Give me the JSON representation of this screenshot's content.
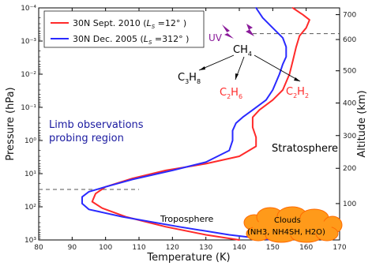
{
  "chart_data": {
    "type": "line",
    "xlabel": "Temperature (K)",
    "ylabel": "Pressure (hPa)",
    "y2label": "Altitude (km)",
    "xlim": [
      80,
      170
    ],
    "ylim": [
      1000,
      0.0001
    ],
    "yscale": "log",
    "x_ticks": [
      "80",
      "90",
      "100",
      "110",
      "120",
      "130",
      "140",
      "150",
      "160",
      "170"
    ],
    "y_ticks": [
      "10⁻⁴",
      "10⁻³",
      "10⁻²",
      "10⁻¹",
      "10⁰",
      "10¹",
      "10²",
      "10³"
    ],
    "y2_ticks": [
      {
        "label": "100",
        "pressure": 80
      },
      {
        "label": "200",
        "pressure": 6.9
      },
      {
        "label": "300",
        "pressure": 0.71
      },
      {
        "label": "400",
        "pressure": 0.074
      },
      {
        "label": "500",
        "pressure": 0.0079
      },
      {
        "label": "600",
        "pressure": 0.0009
      },
      {
        "label": "700",
        "pressure": 0.00016
      }
    ],
    "grid": false,
    "legend_position": "top-left",
    "series": [
      {
        "name": "30N Sept. 2010 (L_S = 12°)",
        "color": "#ff2a2a",
        "points": [
          [
            140,
            1000
          ],
          [
            130,
            700
          ],
          [
            118,
            400
          ],
          [
            106,
            200
          ],
          [
            99,
            110
          ],
          [
            96,
            70
          ],
          [
            97,
            40
          ],
          [
            100,
            25
          ],
          [
            108,
            14
          ],
          [
            118,
            8
          ],
          [
            130,
            5
          ],
          [
            140,
            3
          ],
          [
            145,
            1.5
          ],
          [
            145,
            0.8
          ],
          [
            144,
            0.4
          ],
          [
            144,
            0.2
          ],
          [
            146,
            0.12
          ],
          [
            150,
            0.06
          ],
          [
            153,
            0.03
          ],
          [
            155,
            0.01
          ],
          [
            156,
            0.004
          ],
          [
            157,
            0.0015
          ],
          [
            158,
            0.0007
          ],
          [
            160,
            0.0004
          ],
          [
            161,
            0.00023
          ],
          [
            159,
            0.00016
          ],
          [
            156,
            0.0001
          ]
        ]
      },
      {
        "name": "30N Dec. 2005 (L_S = 312°)",
        "color": "#2a2aff",
        "points": [
          [
            150,
            1000
          ],
          [
            137,
            700
          ],
          [
            122,
            400
          ],
          [
            105,
            200
          ],
          [
            95,
            120
          ],
          [
            93,
            80
          ],
          [
            93,
            50
          ],
          [
            95,
            35
          ],
          [
            100,
            25
          ],
          [
            108,
            15
          ],
          [
            120,
            8
          ],
          [
            130,
            4.5
          ],
          [
            137,
            2
          ],
          [
            138,
            1
          ],
          [
            138,
            0.5
          ],
          [
            139,
            0.3
          ],
          [
            141,
            0.2
          ],
          [
            144,
            0.12
          ],
          [
            148,
            0.06
          ],
          [
            150,
            0.03
          ],
          [
            152,
            0.01
          ],
          [
            153,
            0.005
          ],
          [
            154,
            0.003
          ],
          [
            154,
            0.0015
          ],
          [
            153,
            0.0008
          ],
          [
            150,
            0.0004
          ],
          [
            147,
            0.0002
          ],
          [
            145,
            0.0001
          ]
        ]
      }
    ],
    "reference_lines": [
      {
        "pressure": 0.0006,
        "x_from": 144,
        "x_to": 170
      },
      {
        "pressure": 30,
        "x_from": 80,
        "x_to": 110
      }
    ],
    "annotations": {
      "uv": "UV",
      "ch4": "CH",
      "ch4_sub": "4",
      "c3h8": "C",
      "c3h8_sub1": "3",
      "c3h8_mid": "H",
      "c3h8_sub2": "8",
      "c2h6": "C",
      "c2h6_sub1": "2",
      "c2h6_mid": "H",
      "c2h6_sub2": "6",
      "c2h2": "C",
      "c2h2_sub1": "2",
      "c2h2_mid": "H",
      "c2h2_sub2": "2",
      "limb_line1": "Limb observations",
      "limb_line2": "probing region",
      "stratosphere": "Stratosphere",
      "troposphere": "Troposphere",
      "clouds": "Clouds",
      "clouds_composition": "(NH3, NH4SH, H2O)"
    },
    "legend": [
      {
        "label_prefix": "30N Sept. 2010 (",
        "label_var": "L",
        "label_sub": "S",
        "label_suffix": " =12° )"
      },
      {
        "label_prefix": "30N Dec. 2005 (",
        "label_var": "L",
        "label_sub": "S",
        "label_suffix": " =312° )"
      }
    ],
    "colors": {
      "red": "#ff2a2a",
      "blue": "#2a2aff",
      "limb_text": "#1a1aa0",
      "uv_purple": "#8a1a9a",
      "cloud_orange": "#ff9a1a"
    }
  }
}
